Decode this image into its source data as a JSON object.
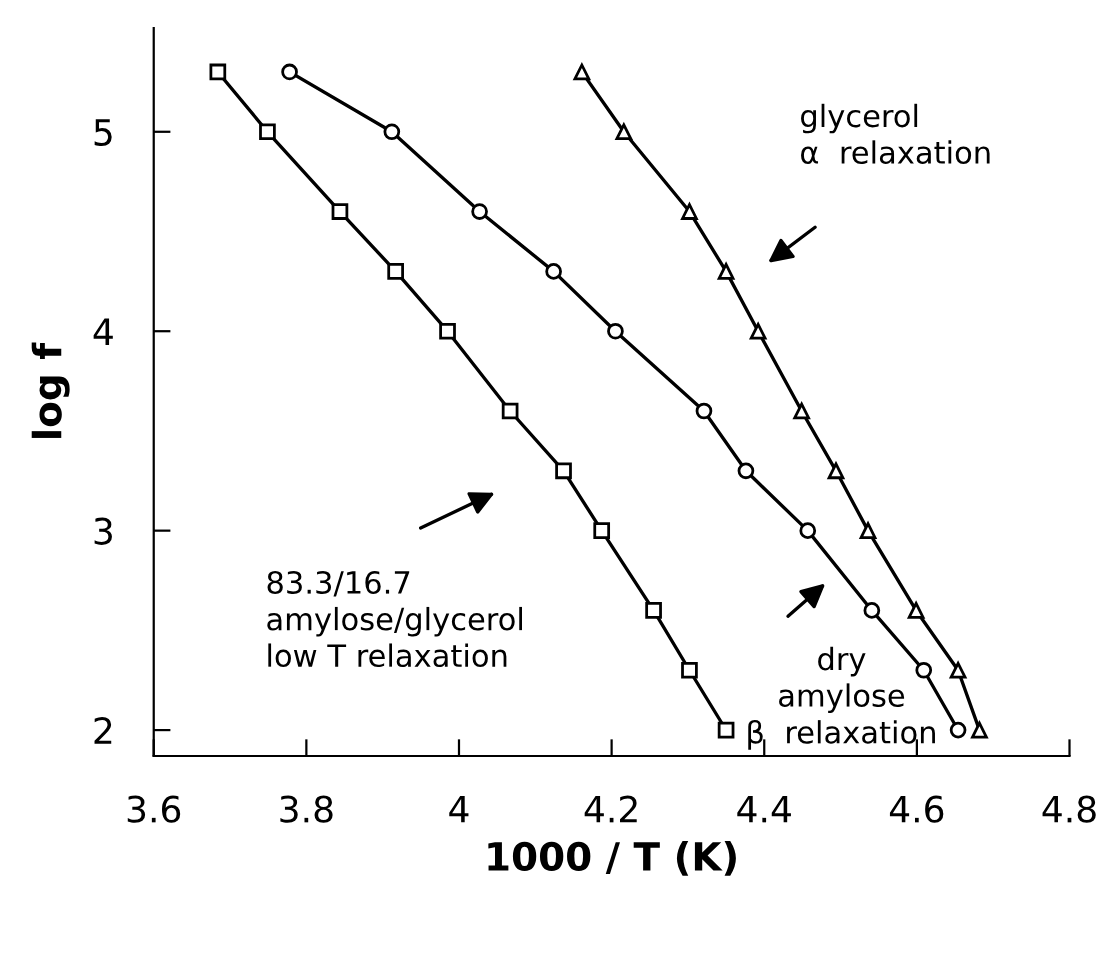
{
  "chart_data": {
    "type": "line",
    "xlabel": "1000 / T (K)",
    "ylabel": "log f",
    "xlim": [
      3.6,
      4.8
    ],
    "xticks": [
      3.6,
      3.8,
      4,
      4.2,
      4.4,
      4.6,
      4.8
    ],
    "ylim": [
      1.87,
      5.52
    ],
    "yticks": [
      2,
      3,
      4,
      5
    ],
    "grid": false,
    "legend": false,
    "series": [
      {
        "color": "#000000",
        "marker": "square",
        "x": [
          3.684,
          3.749,
          3.844,
          3.917,
          3.985,
          4.067,
          4.137,
          4.187,
          4.255,
          4.302,
          4.35
        ],
        "values": [
          5.3,
          5.0,
          4.6,
          4.3,
          4.0,
          3.6,
          3.3,
          3.0,
          2.6,
          2.3,
          2.0
        ]
      },
      {
        "color": "#000000",
        "marker": "circle",
        "x": [
          3.778,
          3.912,
          4.027,
          4.124,
          4.205,
          4.321,
          4.376,
          4.457,
          4.541,
          4.609,
          4.654
        ],
        "values": [
          5.3,
          5.0,
          4.6,
          4.3,
          4.0,
          3.6,
          3.3,
          3.0,
          2.6,
          2.3,
          2.0
        ]
      },
      {
        "color": "#000000",
        "marker": "triangle",
        "x": [
          4.161,
          4.216,
          4.302,
          4.35,
          4.392,
          4.449,
          4.494,
          4.536,
          4.599,
          4.654,
          4.682
        ],
        "values": [
          5.3,
          5.0,
          4.6,
          4.3,
          4.0,
          3.6,
          3.3,
          3.0,
          2.6,
          2.3,
          2.0
        ]
      }
    ],
    "annotations": [
      "glycerol\nα  relaxation",
      "83.3/16.7\namylose/glycerol\nlow T relaxation",
      "dry\namylose\nβ  relaxation"
    ]
  }
}
